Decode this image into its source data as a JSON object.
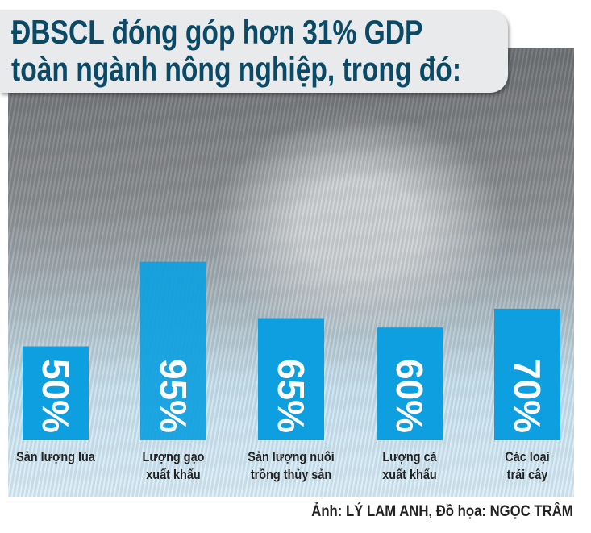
{
  "title_lines": [
    "ĐBSCL đóng góp hơn 31% GDP",
    "toàn ngành nông nghiệp, trong đó:"
  ],
  "credit": "Ảnh: LÝ LAM ANH, Đồ họa: NGỌC TRÂM",
  "chart_data": {
    "type": "bar",
    "categories": [
      [
        "Sản lượng lúa"
      ],
      [
        "Lượng gạo",
        "xuất khẩu"
      ],
      [
        "Sản lượng nuôi",
        "trồng thủy sản"
      ],
      [
        "Lượng cá",
        "xuất khẩu"
      ],
      [
        "Các loại",
        "trái cây"
      ]
    ],
    "values": [
      50,
      95,
      65,
      60,
      70
    ],
    "data_labels": [
      "50%",
      "95%",
      "65%",
      "60%",
      "70%"
    ],
    "unit": "%",
    "ylim": [
      0,
      100
    ],
    "grid": false,
    "bar_color": "#0d9fe0",
    "label_color": "#ffffff"
  }
}
